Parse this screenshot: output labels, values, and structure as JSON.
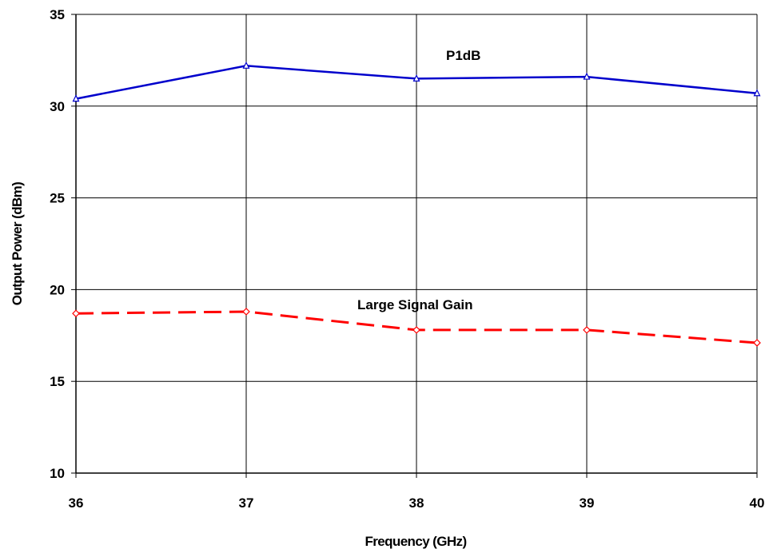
{
  "chart_data": {
    "type": "line",
    "title": "",
    "xlabel": "Frequency (GHz)",
    "ylabel": "Output Power (dBm)",
    "x": [
      36,
      37,
      38,
      39,
      40
    ],
    "xlim": [
      36,
      40
    ],
    "ylim": [
      10,
      35
    ],
    "xticks": [
      "36",
      "37",
      "38",
      "39",
      "40"
    ],
    "yticks": [
      "10",
      "15",
      "20",
      "25",
      "30",
      "35"
    ],
    "grid": true,
    "legend": "none",
    "series": [
      {
        "name": "P1dB",
        "values": [
          30.4,
          32.2,
          31.5,
          31.6,
          30.7
        ],
        "color": "#0000cc",
        "line_style": "solid",
        "marker": "triangle-icon"
      },
      {
        "name": "Large Signal Gain",
        "values": [
          18.7,
          18.8,
          17.8,
          17.8,
          17.1
        ],
        "color": "#ff0000",
        "line_style": "dashed",
        "marker": "diamond-icon"
      }
    ]
  }
}
